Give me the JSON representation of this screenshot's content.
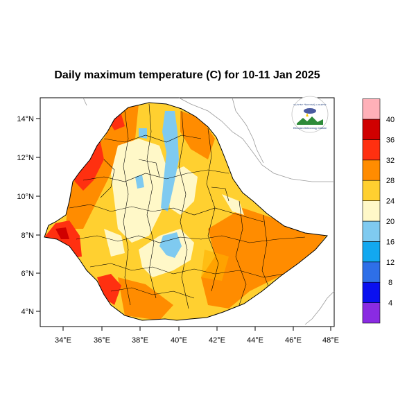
{
  "title": "Daily maximum temperature (C) for 10-11 Jan 2025",
  "axes": {
    "lat_ticks": [
      "4°N",
      "6°N",
      "8°N",
      "10°N",
      "12°N",
      "14°N"
    ],
    "lon_ticks": [
      "34°E",
      "36°E",
      "38°E",
      "40°E",
      "42°E",
      "44°E",
      "46°E",
      "48°E"
    ]
  },
  "colorbar": {
    "labels": [
      "4",
      "8",
      "12",
      "16",
      "20",
      "24",
      "28",
      "32",
      "36",
      "40"
    ],
    "colors": [
      "#8a2be2",
      "#0a10f0",
      "#2e6fe8",
      "#12a8f0",
      "#7fcaf0",
      "#fff8c8",
      "#ffd030",
      "#ff8c00",
      "#ff3010",
      "#d00000",
      "#ffb0b8"
    ]
  },
  "logo": {
    "text_top": "የኢትዮጵያ ሚቲዎሮሎጂ ኢንስቲትዩት",
    "text_bottom": "Ethiopian Meteorology Institute"
  }
}
